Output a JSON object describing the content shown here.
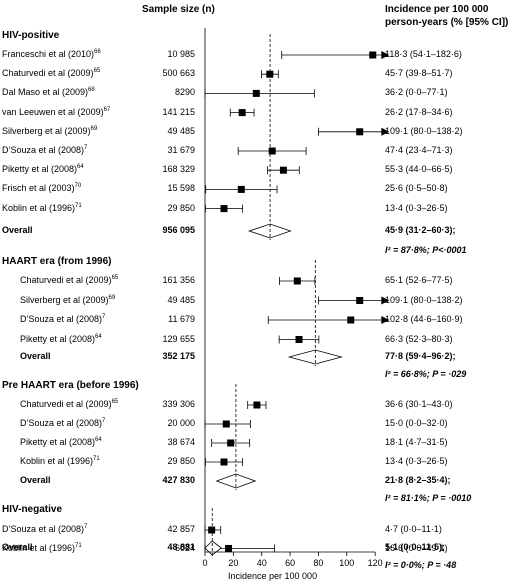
{
  "headers": {
    "sample_size": "Sample size (n)",
    "incidence_line1": "Incidence per 100 000",
    "incidence_line2": "person-years (% [95% CI])"
  },
  "sections": [
    {
      "title": "HIV-positive",
      "indent": false,
      "rows": [
        {
          "study": "Franceschi et al (2010)",
          "ref": "66",
          "n": "10 985",
          "inc": "118·3 (54·1–182·6)",
          "est": 118.3,
          "lo": 54.1,
          "hi": 182.6
        },
        {
          "study": "Chaturvedi et al (2009)",
          "ref": "65",
          "n": "500 663",
          "inc": "45·7 (39·8–51·7)",
          "est": 45.7,
          "lo": 39.8,
          "hi": 51.7
        },
        {
          "study": "Dal Maso et al (2009)",
          "ref": "68",
          "n": "8290",
          "inc": "36·2 (0·0–77·1)",
          "est": 36.2,
          "lo": 0.0,
          "hi": 77.1
        },
        {
          "study": "van Leeuwen et al (2009)",
          "ref": "67",
          "n": "141 215",
          "inc": "26·2 (17·8–34·6)",
          "est": 26.2,
          "lo": 17.8,
          "hi": 34.6
        },
        {
          "study": "Silverberg et al (2009)",
          "ref": "69",
          "n": "49 485",
          "inc": "109·1 (80·0–138·2)",
          "est": 109.1,
          "lo": 80.0,
          "hi": 138.2
        },
        {
          "study": "D’Souza et al (2008)",
          "ref": "7",
          "n": "31 679",
          "inc": "47·4 (23·4–71·3)",
          "est": 47.4,
          "lo": 23.4,
          "hi": 71.3
        },
        {
          "study": "Piketty et al (2008)",
          "ref": "64",
          "n": "168 329",
          "inc": "55·3 (44·0–66·5)",
          "est": 55.3,
          "lo": 44.0,
          "hi": 66.5
        },
        {
          "study": "Frisch et al (2003)",
          "ref": "70",
          "n": "15 598",
          "inc": "25·6 (0·5–50·8)",
          "est": 25.6,
          "lo": 0.5,
          "hi": 50.8
        },
        {
          "study": "Koblin et al (1996)",
          "ref": "71",
          "n": "29 850",
          "inc": "13·4 (0·3–26·5)",
          "est": 13.4,
          "lo": 0.3,
          "hi": 26.5
        }
      ],
      "overall": {
        "label": "Overall",
        "n": "956 095",
        "inc": "45·9 (31·2–60·3);",
        "est": 45.9,
        "lo": 31.2,
        "hi": 60.3,
        "het": "I² = 87·8%; P<·0001"
      }
    },
    {
      "title": "HAART era (from 1996)",
      "indent": true,
      "rows": [
        {
          "study": "Chaturvedi et al (2009)",
          "ref": "65",
          "n": "161 356",
          "inc": "65·1 (52·6–77·5)",
          "est": 65.1,
          "lo": 52.6,
          "hi": 77.5
        },
        {
          "study": "Silverberg et al (2009)",
          "ref": "69",
          "n": "49 485",
          "inc": "109·1 (80·0–138·2)",
          "est": 109.1,
          "lo": 80.0,
          "hi": 138.2
        },
        {
          "study": "D’Souza et al (2008)",
          "ref": "7",
          "n": "11 679",
          "inc": "102·8 (44·6–160·9)",
          "est": 102.8,
          "lo": 44.6,
          "hi": 160.9
        },
        {
          "study": "Piketty et al (2008)",
          "ref": "64",
          "n": "129 655",
          "inc": "66·3 (52·3–80·3)",
          "est": 66.3,
          "lo": 52.3,
          "hi": 80.3
        }
      ],
      "overall": {
        "label": "Overall",
        "n": "352 175",
        "inc": "77·8 (59·4–96·2);",
        "est": 77.8,
        "lo": 59.4,
        "hi": 96.2,
        "het": "I² = 66·8%; P = ·029"
      }
    },
    {
      "title": "Pre HAART era (before 1996)",
      "indent": true,
      "rows": [
        {
          "study": "Chaturvedi et al (2009)",
          "ref": "65",
          "n": "339 306",
          "inc": "36·6 (30·1–43·0)",
          "est": 36.6,
          "lo": 30.1,
          "hi": 43.0
        },
        {
          "study": "D’Souza et al (2008)",
          "ref": "7",
          "n": "20 000",
          "inc": "15·0 (0·0–32·0)",
          "est": 15.0,
          "lo": 0.0,
          "hi": 32.0
        },
        {
          "study": "Piketty et al (2008)",
          "ref": "64",
          "n": "38 674",
          "inc": "18·1 (4·7–31·5)",
          "est": 18.1,
          "lo": 4.7,
          "hi": 31.5
        },
        {
          "study": "Koblin et al (1996)",
          "ref": "71",
          "n": "29 850",
          "inc": "13·4 (0·3–26·5)",
          "est": 13.4,
          "lo": 0.3,
          "hi": 26.5
        }
      ],
      "overall": {
        "label": "Overall",
        "n": "427 830",
        "inc": "21·8 (8·2–35·4);",
        "est": 21.8,
        "lo": 8.2,
        "hi": 35.4,
        "het": "I² = 81·1%; P = ·0010"
      }
    },
    {
      "title": "HIV-negative",
      "indent": false,
      "rows": [
        {
          "study": "D’Souza et al (2008)",
          "ref": "7",
          "n": "42 857",
          "inc": "4·7 (0·0–11·1)",
          "est": 4.7,
          "lo": 0.0,
          "hi": 11.1
        },
        {
          "study": "Koblin et al (1996)",
          "ref": "71",
          "n": "6024",
          "inc": "16·6 (0·0–49·1)",
          "est": 16.6,
          "lo": 0.0,
          "hi": 49.1
        }
      ],
      "overall": {
        "label": "Overall",
        "n": "48 881",
        "inc": "5·1 (0·0–11·5);",
        "est": 5.1,
        "lo": 0.0,
        "hi": 11.5,
        "het": "I² = 0·0%; P = ·48"
      }
    }
  ],
  "chart_data": {
    "type": "forest",
    "xlabel": "Incidence per 100 000",
    "xlim": [
      0,
      130
    ],
    "xticks": [
      0,
      20,
      40,
      60,
      80,
      100,
      120
    ],
    "tick_labels": [
      "0",
      "20",
      "40",
      "60",
      "80",
      "100",
      "120"
    ],
    "marker_color": "#000000"
  }
}
